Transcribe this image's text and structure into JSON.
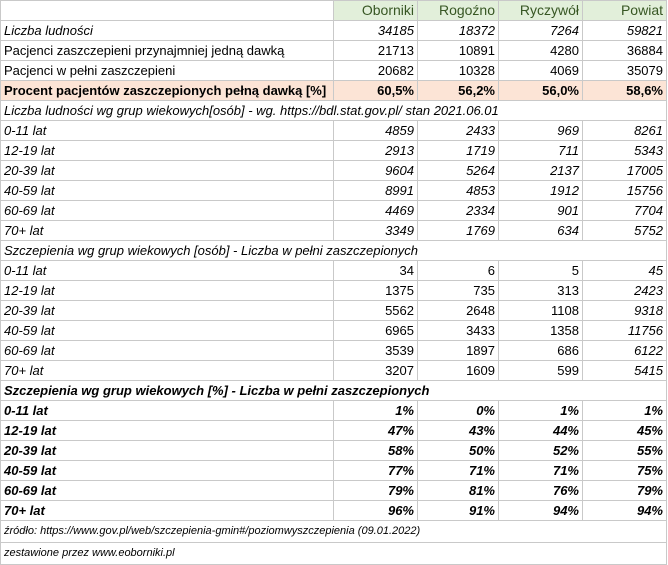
{
  "columns": [
    "Oborniki",
    "Rogoźno",
    "Ryczywół",
    "Powiat"
  ],
  "summary": [
    {
      "label": "Liczba ludności",
      "values": [
        "34185",
        "18372",
        "7264",
        "59821"
      ],
      "style": "it"
    },
    {
      "label": "Pacjenci zaszczepieni przynajmniej jedną dawką",
      "values": [
        "21713",
        "10891",
        "4280",
        "36884"
      ],
      "style": "plain"
    },
    {
      "label": "Pacjenci w pełni zaszczepieni",
      "values": [
        "20682",
        "10328",
        "4069",
        "35079"
      ],
      "style": "plain"
    },
    {
      "label": "Procent pacjentów zaszczepionych pełną dawką [%]",
      "values": [
        "60,5%",
        "56,2%",
        "56,0%",
        "58,6%"
      ],
      "style": "pct"
    }
  ],
  "sections": [
    {
      "title": "Liczba ludności wg grup wiekowych[osób] - wg. https://bdl.stat.gov.pl/ stan 2021.06.01",
      "title_style": "it",
      "row_style": "it",
      "rows": [
        {
          "label": "0-11 lat",
          "values": [
            "4859",
            "2433",
            "969",
            "8261"
          ]
        },
        {
          "label": "12-19 lat",
          "values": [
            "2913",
            "1719",
            "711",
            "5343"
          ]
        },
        {
          "label": "20-39 lat",
          "values": [
            "9604",
            "5264",
            "2137",
            "17005"
          ]
        },
        {
          "label": "40-59 lat",
          "values": [
            "8991",
            "4853",
            "1912",
            "15756"
          ]
        },
        {
          "label": "60-69 lat",
          "values": [
            "4469",
            "2334",
            "901",
            "7704"
          ]
        },
        {
          "label": "70+ lat",
          "values": [
            "3349",
            "1769",
            "634",
            "5752"
          ]
        }
      ]
    },
    {
      "title": "Szczepienia wg grup wiekowych [osób] - Liczba w pełni zaszczepionych",
      "title_style": "it",
      "row_style": "mixed",
      "rows": [
        {
          "label": "0-11 lat",
          "values": [
            "34",
            "6",
            "5",
            "45"
          ]
        },
        {
          "label": "12-19 lat",
          "values": [
            "1375",
            "735",
            "313",
            "2423"
          ]
        },
        {
          "label": "20-39 lat",
          "values": [
            "5562",
            "2648",
            "1108",
            "9318"
          ]
        },
        {
          "label": "40-59 lat",
          "values": [
            "6965",
            "3433",
            "1358",
            "11756"
          ]
        },
        {
          "label": "60-69 lat",
          "values": [
            "3539",
            "1897",
            "686",
            "6122"
          ]
        },
        {
          "label": "70+ lat",
          "values": [
            "3207",
            "1609",
            "599",
            "5415"
          ]
        }
      ]
    },
    {
      "title": "Szczepienia wg grup wiekowych [%] - Liczba w pełni zaszczepionych",
      "title_style": "bi",
      "row_style": "bi",
      "rows": [
        {
          "label": "0-11 lat",
          "values": [
            "1%",
            "0%",
            "1%",
            "1%"
          ]
        },
        {
          "label": "12-19 lat",
          "values": [
            "47%",
            "43%",
            "44%",
            "45%"
          ]
        },
        {
          "label": "20-39 lat",
          "values": [
            "58%",
            "50%",
            "52%",
            "55%"
          ]
        },
        {
          "label": "40-59 lat",
          "values": [
            "77%",
            "71%",
            "71%",
            "75%"
          ]
        },
        {
          "label": "60-69 lat",
          "values": [
            "79%",
            "81%",
            "76%",
            "79%"
          ]
        },
        {
          "label": "70+ lat",
          "values": [
            "96%",
            "91%",
            "94%",
            "94%"
          ]
        }
      ]
    }
  ],
  "footer": {
    "source": "źródło: https://www.gov.pl/web/szczepienia-gmin#/poziomwyszczepienia  (09.01.2022)",
    "compiled_by": "zestawione przez www.eoborniki.pl"
  }
}
